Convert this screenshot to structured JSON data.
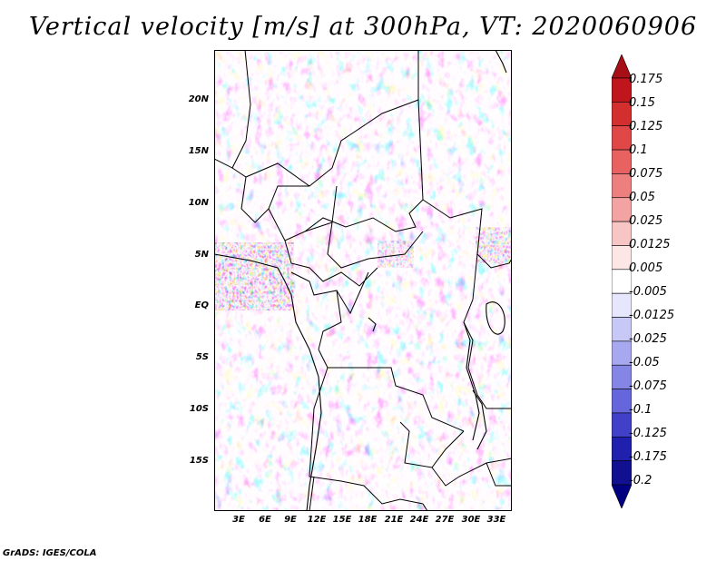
{
  "title": "Vertical velocity [m/s] at 300hPa, VT: 2020060906",
  "footer": "GrADS: IGES/COLA",
  "lat_labels": [
    "20N",
    "15N",
    "10N",
    "5N",
    "EQ",
    "5S",
    "10S",
    "15S"
  ],
  "lon_labels": [
    "3E",
    "6E",
    "9E",
    "12E",
    "15E",
    "18E",
    "21E",
    "24E",
    "27E",
    "30E",
    "33E"
  ],
  "colorbar": {
    "labels": [
      "0.175",
      "0.15",
      "0.125",
      "0.1",
      "0.075",
      "0.05",
      "0.025",
      "0.0125",
      "0.005",
      "-0.005",
      "-0.0125",
      "-0.025",
      "-0.05",
      "-0.075",
      "-0.1",
      "-0.125",
      "-0.175",
      "-0.2"
    ],
    "colors": [
      "#a50f15",
      "#c0151c",
      "#d32f2f",
      "#e04848",
      "#e86262",
      "#ee7f7f",
      "#f4a3a3",
      "#f8c5c5",
      "#fce6e6",
      "#ffffff",
      "#e6e6fc",
      "#c8c8f6",
      "#a8a8f0",
      "#8585e6",
      "#6565dc",
      "#4040c8",
      "#2020ae",
      "#101090",
      "#000080"
    ]
  }
}
